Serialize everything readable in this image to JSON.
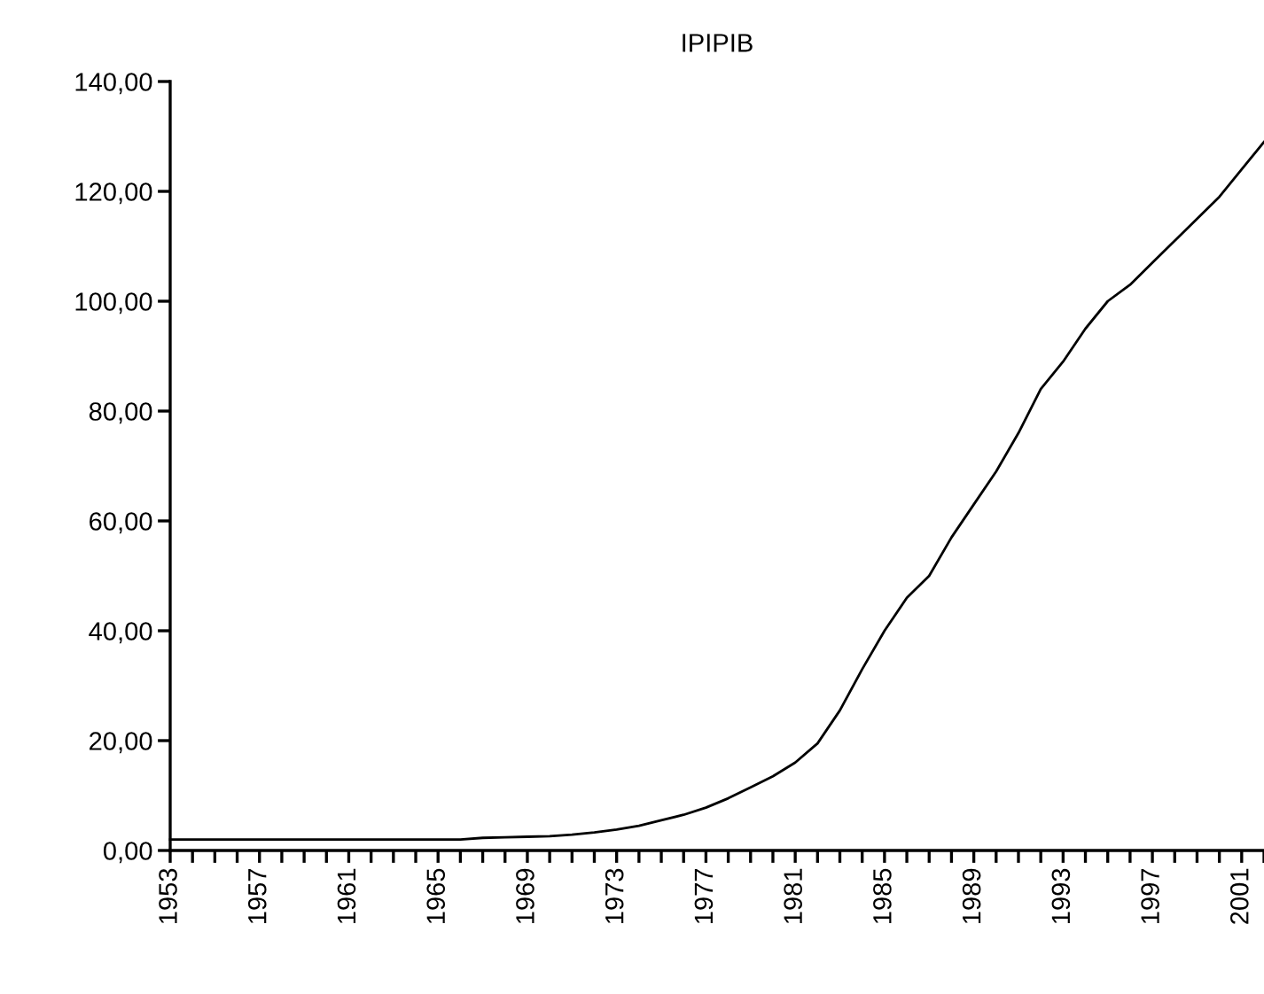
{
  "chart_data": {
    "type": "line",
    "title": "IPIPIB",
    "x": [
      1953,
      1954,
      1955,
      1956,
      1957,
      1958,
      1959,
      1960,
      1961,
      1962,
      1963,
      1964,
      1965,
      1966,
      1967,
      1968,
      1969,
      1970,
      1971,
      1972,
      1973,
      1974,
      1975,
      1976,
      1977,
      1978,
      1979,
      1980,
      1981,
      1982,
      1983,
      1984,
      1985,
      1986,
      1987,
      1988,
      1989,
      1990,
      1991,
      1992,
      1993,
      1994,
      1995,
      1996,
      1997,
      1998,
      1999,
      2000,
      2001,
      2002
    ],
    "series": [
      {
        "color": "#000000",
        "values": [
          2.0,
          2.0,
          2.0,
          2.0,
          2.0,
          2.0,
          2.0,
          2.0,
          2.0,
          2.0,
          2.0,
          2.0,
          2.0,
          2.0,
          2.3,
          2.4,
          2.5,
          2.6,
          2.9,
          3.3,
          3.8,
          4.5,
          5.5,
          6.5,
          7.8,
          9.5,
          11.5,
          13.5,
          16,
          19.5,
          25.5,
          33,
          40,
          46,
          50,
          57,
          63,
          69,
          76,
          84,
          89,
          95,
          100,
          103,
          107,
          111,
          115,
          119,
          124,
          129
        ]
      }
    ],
    "xlim": [
      1953,
      2002
    ],
    "xticks": [
      1953,
      {
        "value": 1954,
        "label": null
      },
      {
        "value": 1955,
        "label": null
      },
      {
        "value": 1956,
        "label": null
      },
      1957,
      {
        "value": 1958,
        "label": null
      },
      {
        "value": 1959,
        "label": null
      },
      {
        "value": 1960,
        "label": null
      },
      1961,
      {
        "value": 1962,
        "label": null
      },
      {
        "value": 1963,
        "label": null
      },
      {
        "value": 1964,
        "label": null
      },
      1965,
      {
        "value": 1966,
        "label": null
      },
      {
        "value": 1967,
        "label": null
      },
      {
        "value": 1968,
        "label": null
      },
      1969,
      {
        "value": 1970,
        "label": null
      },
      {
        "value": 1971,
        "label": null
      },
      {
        "value": 1972,
        "label": null
      },
      1973,
      {
        "value": 1974,
        "label": null
      },
      {
        "value": 1975,
        "label": null
      },
      {
        "value": 1976,
        "label": null
      },
      1977,
      {
        "value": 1978,
        "label": null
      },
      {
        "value": 1979,
        "label": null
      },
      {
        "value": 1980,
        "label": null
      },
      1981,
      {
        "value": 1982,
        "label": null
      },
      {
        "value": 1983,
        "label": null
      },
      {
        "value": 1984,
        "label": null
      },
      1985,
      {
        "value": 1986,
        "label": null
      },
      {
        "value": 1987,
        "label": null
      },
      {
        "value": 1988,
        "label": null
      },
      1989,
      {
        "value": 1990,
        "label": null
      },
      {
        "value": 1991,
        "label": null
      },
      {
        "value": 1992,
        "label": null
      },
      1993,
      {
        "value": 1994,
        "label": null
      },
      {
        "value": 1995,
        "label": null
      },
      {
        "value": 1996,
        "label": null
      },
      1997,
      {
        "value": 1998,
        "label": null
      },
      {
        "value": 1999,
        "label": null
      },
      {
        "value": 2000,
        "label": null
      },
      2001,
      {
        "value": 2002,
        "label": null
      }
    ],
    "ylim": [
      0,
      140
    ],
    "yticks": [
      {
        "value": 0,
        "label": "0,00"
      },
      {
        "value": 20,
        "label": "20,00"
      },
      {
        "value": 40,
        "label": "40,00"
      },
      {
        "value": 60,
        "label": "60,00"
      },
      {
        "value": 80,
        "label": "80,00"
      },
      {
        "value": 100,
        "label": "100,00"
      },
      {
        "value": 120,
        "label": "120,00"
      },
      {
        "value": 140,
        "label": "140,00"
      }
    ],
    "grid": false,
    "legend": false,
    "marker": "none",
    "line_style": "solid"
  }
}
